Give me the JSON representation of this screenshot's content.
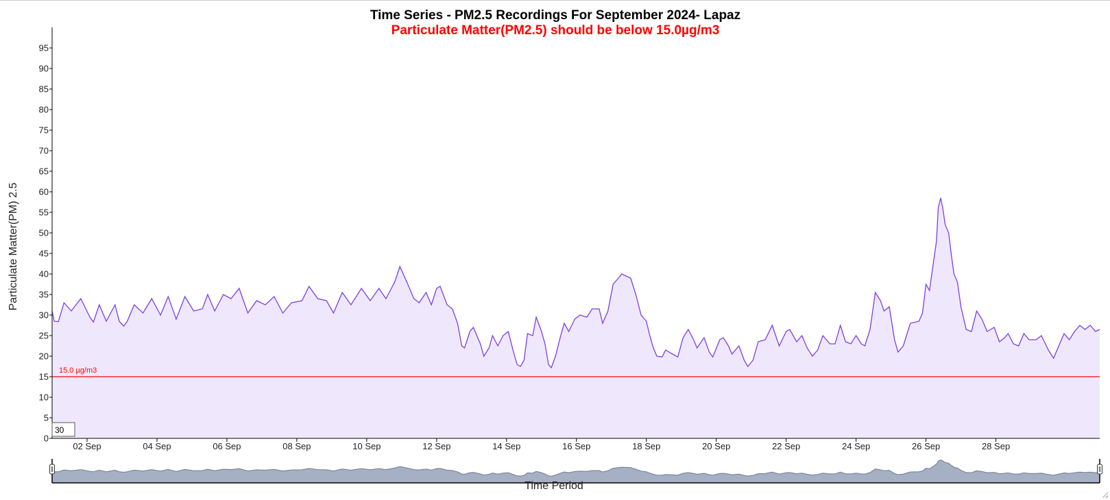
{
  "chart_data": {
    "type": "area",
    "title": "Time Series - PM2.5 Recordings For September 2024- Lapaz",
    "subtitle": "Particulate Matter(PM2.5) should be below 15.0µg/m3",
    "ylabel": "Particulate Matter(PM) 2.5",
    "xlabel": "Time Period",
    "ylim": [
      0,
      100
    ],
    "yticks": [
      "0",
      "5",
      "10",
      "15",
      "20",
      "25",
      "30",
      "35",
      "40",
      "45",
      "50",
      "55",
      "60",
      "65",
      "70",
      "75",
      "80",
      "85",
      "90",
      "95"
    ],
    "xlim_day": [
      1.0,
      30.97
    ],
    "xticks": [
      {
        "day": 2,
        "label": "02 Sep"
      },
      {
        "day": 4,
        "label": "04 Sep"
      },
      {
        "day": 6,
        "label": "06 Sep"
      },
      {
        "day": 8,
        "label": "08 Sep"
      },
      {
        "day": 10,
        "label": "10 Sep"
      },
      {
        "day": 12,
        "label": "12 Sep"
      },
      {
        "day": 14,
        "label": "14 Sep"
      },
      {
        "day": 16,
        "label": "16 Sep"
      },
      {
        "day": 18,
        "label": "18 Sep"
      },
      {
        "day": 20,
        "label": "20 Sep"
      },
      {
        "day": 22,
        "label": "22 Sep"
      },
      {
        "day": 24,
        "label": "24 Sep"
      },
      {
        "day": 26,
        "label": "26 Sep"
      },
      {
        "day": 28,
        "label": "28 Sep"
      }
    ],
    "threshold": {
      "value": 15.0,
      "label": "15.0 µg/m3"
    },
    "rolling_window": "30",
    "colors": {
      "line": "#7b3fe4",
      "fill": "#efe8fc",
      "threshold": "#ff0000",
      "subtitle": "#ff0000",
      "navigator_fill": "#a6b0c4",
      "navigator_line": "#6e7a92"
    },
    "series": [
      {
        "points": [
          [
            1.0,
            31.0
          ],
          [
            1.06,
            28.5
          ],
          [
            1.18,
            28.4
          ],
          [
            1.34,
            33.0
          ],
          [
            1.55,
            31.0
          ],
          [
            1.82,
            34.0
          ],
          [
            2.08,
            29.5
          ],
          [
            2.18,
            28.3
          ],
          [
            2.35,
            32.5
          ],
          [
            2.55,
            28.5
          ],
          [
            2.8,
            32.5
          ],
          [
            2.92,
            28.5
          ],
          [
            3.05,
            27.3
          ],
          [
            3.15,
            28.5
          ],
          [
            3.35,
            32.5
          ],
          [
            3.6,
            30.5
          ],
          [
            3.85,
            34.0
          ],
          [
            4.1,
            30.0
          ],
          [
            4.32,
            34.5
          ],
          [
            4.55,
            29.0
          ],
          [
            4.8,
            34.5
          ],
          [
            5.05,
            31.0
          ],
          [
            5.3,
            31.5
          ],
          [
            5.45,
            35.0
          ],
          [
            5.65,
            31.0
          ],
          [
            5.9,
            35.0
          ],
          [
            6.12,
            34.0
          ],
          [
            6.35,
            36.5
          ],
          [
            6.6,
            30.5
          ],
          [
            6.85,
            33.5
          ],
          [
            7.1,
            32.5
          ],
          [
            7.35,
            34.5
          ],
          [
            7.6,
            30.5
          ],
          [
            7.85,
            33.0
          ],
          [
            8.15,
            33.5
          ],
          [
            8.35,
            37.0
          ],
          [
            8.6,
            34.0
          ],
          [
            8.85,
            33.5
          ],
          [
            9.05,
            30.5
          ],
          [
            9.3,
            35.5
          ],
          [
            9.55,
            32.5
          ],
          [
            9.85,
            36.5
          ],
          [
            10.1,
            33.5
          ],
          [
            10.35,
            36.5
          ],
          [
            10.55,
            34.0
          ],
          [
            10.8,
            38.0
          ],
          [
            10.95,
            41.8
          ],
          [
            11.15,
            38.0
          ],
          [
            11.35,
            34.0
          ],
          [
            11.5,
            33.0
          ],
          [
            11.7,
            35.5
          ],
          [
            11.85,
            32.5
          ],
          [
            12.0,
            36.5
          ],
          [
            12.1,
            37.0
          ],
          [
            12.3,
            32.5
          ],
          [
            12.45,
            31.5
          ],
          [
            12.6,
            28.0
          ],
          [
            12.72,
            22.5
          ],
          [
            12.8,
            22.0
          ],
          [
            12.95,
            26.0
          ],
          [
            13.05,
            27.0
          ],
          [
            13.25,
            23.0
          ],
          [
            13.35,
            20.0
          ],
          [
            13.5,
            22.0
          ],
          [
            13.6,
            25.0
          ],
          [
            13.75,
            22.5
          ],
          [
            13.9,
            25.0
          ],
          [
            14.05,
            26.0
          ],
          [
            14.2,
            21.0
          ],
          [
            14.3,
            18.0
          ],
          [
            14.4,
            17.5
          ],
          [
            14.5,
            19.0
          ],
          [
            14.6,
            25.5
          ],
          [
            14.75,
            25.0
          ],
          [
            14.85,
            29.5
          ],
          [
            15.0,
            26.0
          ],
          [
            15.1,
            23.0
          ],
          [
            15.2,
            18.0
          ],
          [
            15.28,
            17.2
          ],
          [
            15.4,
            20.0
          ],
          [
            15.55,
            25.0
          ],
          [
            15.65,
            28.0
          ],
          [
            15.78,
            26.0
          ],
          [
            15.95,
            29.0
          ],
          [
            16.1,
            30.0
          ],
          [
            16.3,
            29.5
          ],
          [
            16.45,
            31.5
          ],
          [
            16.65,
            31.5
          ],
          [
            16.75,
            28.0
          ],
          [
            16.9,
            31.0
          ],
          [
            17.05,
            37.5
          ],
          [
            17.3,
            40.0
          ],
          [
            17.55,
            39.0
          ],
          [
            17.7,
            35.0
          ],
          [
            17.85,
            30.0
          ],
          [
            18.0,
            28.5
          ],
          [
            18.1,
            25.0
          ],
          [
            18.2,
            22.0
          ],
          [
            18.3,
            20.0
          ],
          [
            18.45,
            19.8
          ],
          [
            18.55,
            21.5
          ],
          [
            18.75,
            20.5
          ],
          [
            18.9,
            19.8
          ],
          [
            19.05,
            24.5
          ],
          [
            19.2,
            26.5
          ],
          [
            19.35,
            24.0
          ],
          [
            19.45,
            22.0
          ],
          [
            19.65,
            24.5
          ],
          [
            19.8,
            21.0
          ],
          [
            19.9,
            19.8
          ],
          [
            20.1,
            24.0
          ],
          [
            20.2,
            24.5
          ],
          [
            20.35,
            22.5
          ],
          [
            20.45,
            20.5
          ],
          [
            20.65,
            22.5
          ],
          [
            20.8,
            19.0
          ],
          [
            20.9,
            17.5
          ],
          [
            21.05,
            19.0
          ],
          [
            21.2,
            23.5
          ],
          [
            21.4,
            24.0
          ],
          [
            21.6,
            27.5
          ],
          [
            21.8,
            22.5
          ],
          [
            22.0,
            26.0
          ],
          [
            22.1,
            26.5
          ],
          [
            22.3,
            23.5
          ],
          [
            22.45,
            25.0
          ],
          [
            22.6,
            22.0
          ],
          [
            22.75,
            20.0
          ],
          [
            22.9,
            21.5
          ],
          [
            23.05,
            25.0
          ],
          [
            23.25,
            23.0
          ],
          [
            23.4,
            23.0
          ],
          [
            23.55,
            27.5
          ],
          [
            23.7,
            23.5
          ],
          [
            23.85,
            23.0
          ],
          [
            24.0,
            25.0
          ],
          [
            24.15,
            23.0
          ],
          [
            24.25,
            22.5
          ],
          [
            24.4,
            26.5
          ],
          [
            24.55,
            35.5
          ],
          [
            24.7,
            33.5
          ],
          [
            24.8,
            31.0
          ],
          [
            24.95,
            32.0
          ],
          [
            25.1,
            24.0
          ],
          [
            25.2,
            21.0
          ],
          [
            25.35,
            22.5
          ],
          [
            25.55,
            28.0
          ],
          [
            25.8,
            28.5
          ],
          [
            25.9,
            30.5
          ],
          [
            26.0,
            37.5
          ],
          [
            26.1,
            36.0
          ],
          [
            26.2,
            42.0
          ],
          [
            26.3,
            48.0
          ],
          [
            26.35,
            56.0
          ],
          [
            26.42,
            58.5
          ],
          [
            26.48,
            56.0
          ],
          [
            26.55,
            52.0
          ],
          [
            26.65,
            50.0
          ],
          [
            26.72,
            45.0
          ],
          [
            26.8,
            40.0
          ],
          [
            26.9,
            38.0
          ],
          [
            27.0,
            32.0
          ],
          [
            27.15,
            26.5
          ],
          [
            27.3,
            26.0
          ],
          [
            27.45,
            31.0
          ],
          [
            27.6,
            29.0
          ],
          [
            27.75,
            26.0
          ],
          [
            27.95,
            27.0
          ],
          [
            28.1,
            23.5
          ],
          [
            28.25,
            24.5
          ],
          [
            28.35,
            25.5
          ],
          [
            28.5,
            23.0
          ],
          [
            28.65,
            22.5
          ],
          [
            28.8,
            25.5
          ],
          [
            28.95,
            24.0
          ],
          [
            29.15,
            24.0
          ],
          [
            29.3,
            25.0
          ],
          [
            29.5,
            21.5
          ],
          [
            29.65,
            19.5
          ],
          [
            29.8,
            22.5
          ],
          [
            29.95,
            25.5
          ],
          [
            30.1,
            24.0
          ],
          [
            30.25,
            26.0
          ],
          [
            30.4,
            27.5
          ],
          [
            30.55,
            26.5
          ],
          [
            30.7,
            27.5
          ],
          [
            30.85,
            26.0
          ],
          [
            30.97,
            26.5
          ]
        ]
      }
    ]
  }
}
